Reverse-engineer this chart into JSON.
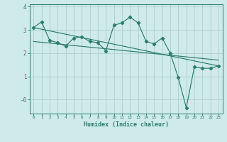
{
  "xlabel": "Humidex (Indice chaleur)",
  "x": [
    0,
    1,
    2,
    3,
    4,
    5,
    6,
    7,
    8,
    9,
    10,
    11,
    12,
    13,
    14,
    15,
    16,
    17,
    18,
    19,
    20,
    21,
    22,
    23
  ],
  "line1": [
    3.1,
    3.35,
    2.55,
    2.45,
    2.3,
    2.65,
    2.7,
    2.5,
    2.45,
    2.1,
    3.2,
    3.3,
    3.55,
    3.3,
    2.5,
    2.4,
    2.65,
    2.0,
    0.95,
    -0.35,
    1.4,
    1.35,
    1.35,
    1.45
  ],
  "line2_x": [
    0,
    23
  ],
  "line2_y": [
    3.1,
    1.45
  ],
  "line3_x": [
    0,
    23
  ],
  "line3_y": [
    2.5,
    1.7
  ],
  "bg_color": "#ceeaea",
  "line_color": "#2e7d6e",
  "grid_color": "#aecece",
  "ylim": [
    -0.6,
    4.1
  ],
  "xlim": [
    -0.5,
    23.5
  ],
  "yticks": [
    0,
    1,
    2,
    3,
    4
  ],
  "ytick_labels": [
    "-0",
    "1",
    "2",
    "3",
    "4"
  ],
  "xticks": [
    0,
    1,
    2,
    3,
    4,
    5,
    6,
    7,
    8,
    9,
    10,
    11,
    12,
    13,
    14,
    15,
    16,
    17,
    18,
    19,
    20,
    21,
    22,
    23
  ],
  "xlabel_fontsize": 6.0,
  "xtick_fontsize": 4.2,
  "ytick_fontsize": 5.5,
  "linewidth": 0.85,
  "markersize": 2.2
}
